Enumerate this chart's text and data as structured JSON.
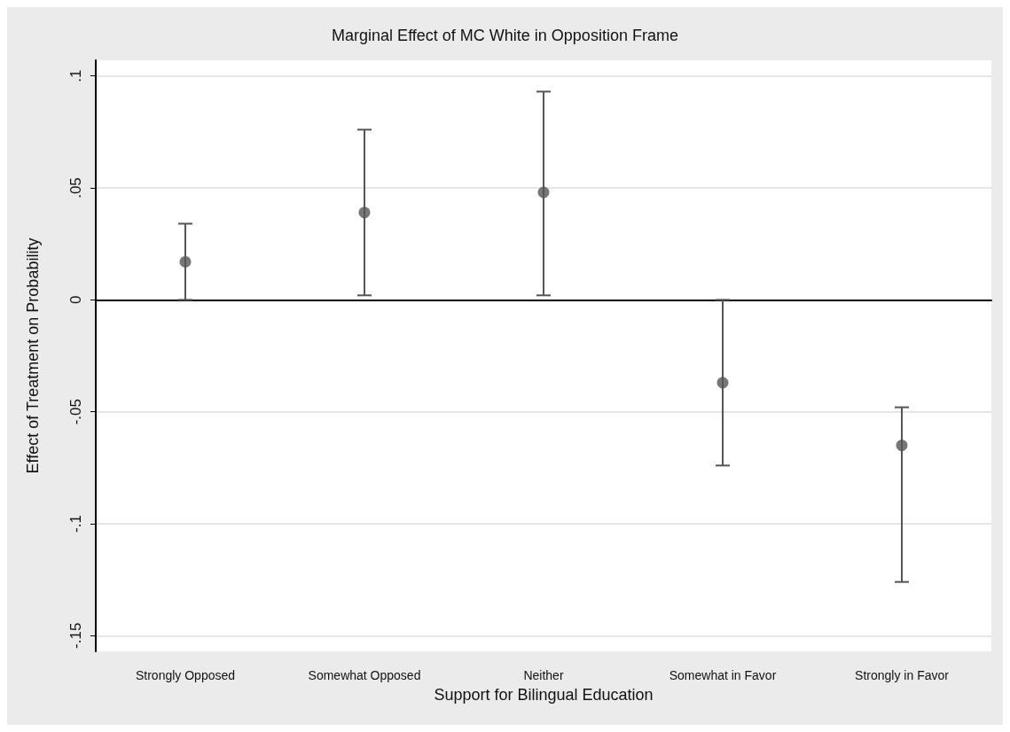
{
  "chart_data": {
    "type": "scatter",
    "title": "Marginal Effect of MC White in Opposition Frame",
    "xlabel": "Support for Bilingual Education",
    "ylabel": "Effect of Treatment on Probability",
    "categories": [
      "Strongly Opposed",
      "Somewhat Opposed",
      "Neither",
      "Somewhat in Favor",
      "Strongly in Favor"
    ],
    "values": [
      0.017,
      0.039,
      0.048,
      -0.037,
      -0.065
    ],
    "errors": [
      [
        0.0,
        0.034
      ],
      [
        0.002,
        0.076
      ],
      [
        0.002,
        0.093
      ],
      [
        -0.074,
        0.0
      ],
      [
        -0.126,
        -0.048
      ]
    ],
    "color": "#555555",
    "ylim": [
      -0.157,
      0.107
    ],
    "yticks": [
      {
        "value": -0.15,
        "label": "-.15"
      },
      {
        "value": -0.1,
        "label": "-.1"
      },
      {
        "value": -0.05,
        "label": "-.05"
      },
      {
        "value": 0,
        "label": "0"
      },
      {
        "value": 0.05,
        "label": ".05"
      },
      {
        "value": 0.1,
        "label": ".1"
      }
    ],
    "grid": "y",
    "marker": "circle"
  }
}
